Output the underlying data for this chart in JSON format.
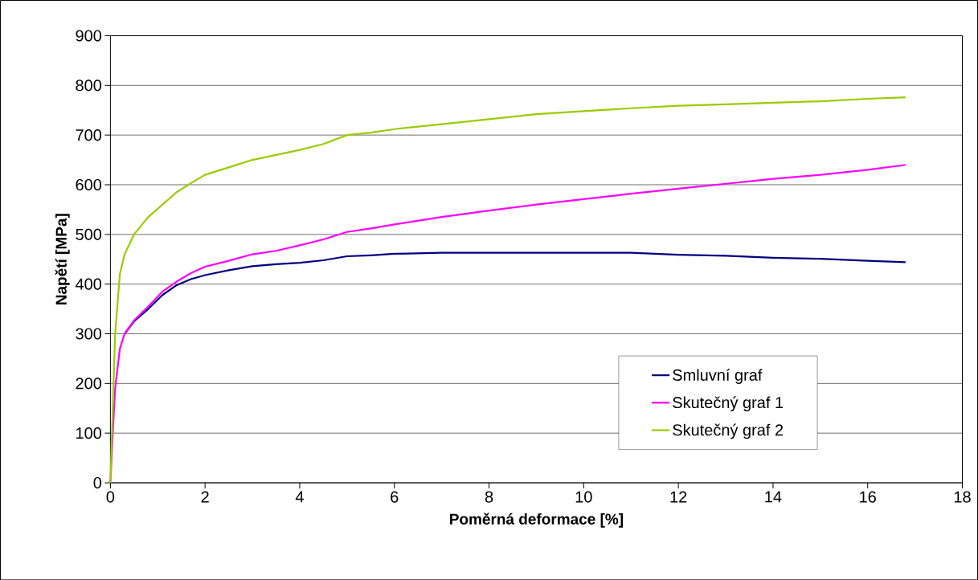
{
  "chart_data": {
    "type": "line",
    "xlabel": "Poměrná deformace [%]",
    "ylabel": "Napětí [MPa]",
    "x": [
      0,
      0.05,
      0.1,
      0.2,
      0.3,
      0.5,
      0.8,
      1.1,
      1.4,
      1.7,
      2,
      2.5,
      3,
      3.5,
      4,
      4.5,
      5,
      5.5,
      6,
      7,
      8,
      9,
      10,
      11,
      12,
      13,
      14,
      15,
      16,
      16.8
    ],
    "series": [
      {
        "name": "Smluvní graf",
        "color": "#000080",
        "values": [
          null,
          null,
          null,
          null,
          300,
          325,
          350,
          378,
          398,
          410,
          418,
          428,
          436,
          440,
          443,
          448,
          456,
          458,
          461,
          463,
          463,
          463,
          463,
          463,
          459,
          457,
          453,
          451,
          447,
          444
        ]
      },
      {
        "name": "Skutečný graf 1",
        "color": "#ff00ff",
        "values": [
          0,
          100,
          190,
          270,
          300,
          327,
          355,
          385,
          405,
          422,
          435,
          447,
          460,
          467,
          478,
          490,
          505,
          512,
          520,
          535,
          548,
          560,
          571,
          582,
          592,
          602,
          612,
          620,
          630,
          640
        ]
      },
      {
        "name": "Skutečný graf 2",
        "color": "#99cc00",
        "values": [
          0,
          150,
          300,
          420,
          460,
          500,
          535,
          560,
          585,
          603,
          620,
          635,
          650,
          660,
          670,
          682,
          700,
          705,
          712,
          722,
          732,
          742,
          748,
          754,
          759,
          762,
          765,
          768,
          773,
          776
        ]
      }
    ],
    "xlim": [
      0,
      18
    ],
    "xticks": [
      0,
      2,
      4,
      6,
      8,
      10,
      12,
      14,
      16,
      18
    ],
    "ylim": [
      0,
      900
    ],
    "yticks": [
      0,
      100,
      200,
      300,
      400,
      500,
      600,
      700,
      800,
      900
    ],
    "grid": "y",
    "legend": "bottom right",
    "marker": "none",
    "line_style": "solid"
  }
}
